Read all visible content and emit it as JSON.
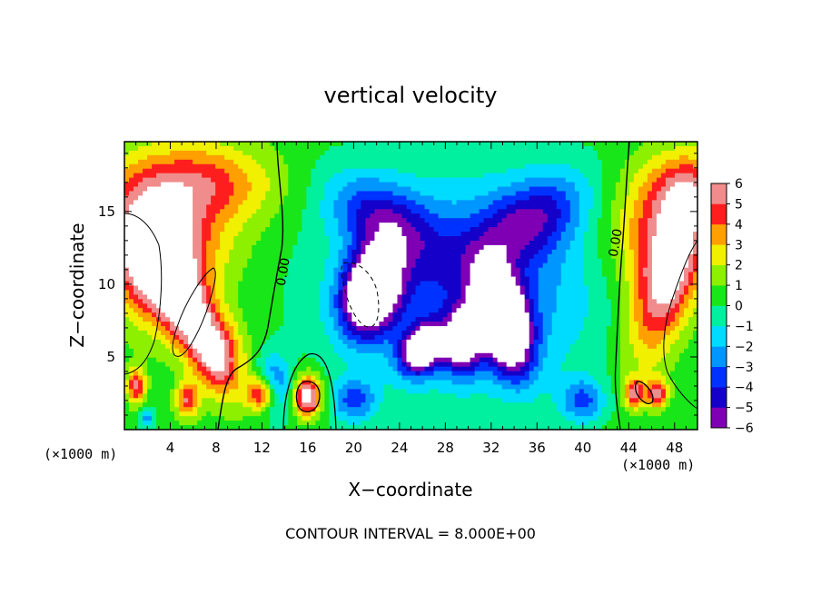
{
  "chart_data": {
    "type": "heatmap",
    "title": "vertical velocity",
    "xlabel": "X−coordinate",
    "ylabel": "Z−coordinate",
    "x_unit_left": "(×1000 m)",
    "x_unit_right": "(×1000 m)",
    "footer": "CONTOUR INTERVAL = 8.000E+00",
    "xlim": [
      0,
      50
    ],
    "ylim": [
      0,
      19.8
    ],
    "x_ticks": [
      4,
      8,
      12,
      16,
      20,
      24,
      28,
      32,
      36,
      40,
      44,
      48
    ],
    "x_tick_labels": [
      "4",
      "8",
      "12",
      "16",
      "20",
      "24",
      "28",
      "32",
      "36",
      "40",
      "44",
      "48"
    ],
    "y_ticks": [
      5,
      10,
      15
    ],
    "y_tick_labels": [
      "5",
      "10",
      "15"
    ],
    "contour_labels": [
      {
        "text": "0.00",
        "x": 14.2,
        "y": 10.8
      },
      {
        "text": "0.00",
        "x": 43.2,
        "y": 12.8
      }
    ],
    "colorbar": {
      "min": -6,
      "max": 6,
      "tick_values": [
        6,
        5,
        4,
        3,
        2,
        1,
        0,
        -1,
        -2,
        -3,
        -4,
        -5,
        -6
      ],
      "tick_labels": [
        "6",
        "5",
        "4",
        "3",
        "2",
        "1",
        "0",
        "−1",
        "−2",
        "−3",
        "−4",
        "−5",
        "−6"
      ]
    },
    "features": [
      {
        "x": 2.5,
        "z": 12.0,
        "sx": 3.5,
        "sz": 4.5,
        "amp": 6,
        "theta": 0.5
      },
      {
        "x": 6.0,
        "z": 7.5,
        "sx": 2.0,
        "sz": 5.0,
        "amp": 6,
        "theta": 0.6
      },
      {
        "x": 4.5,
        "z": 14.0,
        "sx": 6.0,
        "sz": 5.0,
        "amp": 3.5,
        "theta": 0.5
      },
      {
        "x": 7.0,
        "z": 17.0,
        "sx": 7.0,
        "sz": 2.5,
        "amp": 2.5,
        "theta": 0.0
      },
      {
        "x": 1.0,
        "z": 3.0,
        "sx": 0.8,
        "sz": 1.2,
        "amp": 5,
        "theta": 0.0
      },
      {
        "x": 5.5,
        "z": 2.0,
        "sx": 1.0,
        "sz": 1.2,
        "amp": 4.5,
        "theta": 0.0
      },
      {
        "x": 8.5,
        "z": 5.0,
        "sx": 2.0,
        "sz": 2.5,
        "amp": 3,
        "theta": 0.0
      },
      {
        "x": 12.0,
        "z": 2.5,
        "sx": 1.3,
        "sz": 1.2,
        "amp": 6,
        "theta": 0.0
      },
      {
        "x": 16.0,
        "z": 2.3,
        "sx": 1.2,
        "sz": 1.4,
        "amp": 7,
        "theta": 0.0
      },
      {
        "x": 47.5,
        "z": 10.5,
        "sx": 2.5,
        "sz": 6.0,
        "amp": 6,
        "theta": -0.4
      },
      {
        "x": 46.0,
        "z": 14.0,
        "sx": 4.0,
        "sz": 4.5,
        "amp": 3.5,
        "theta": -0.5
      },
      {
        "x": 49.0,
        "z": 16.5,
        "sx": 3.0,
        "sz": 2.5,
        "amp": 3,
        "theta": 0.0
      },
      {
        "x": 44.5,
        "z": 2.5,
        "sx": 0.9,
        "sz": 1.0,
        "amp": 5,
        "theta": 0.0
      },
      {
        "x": 46.5,
        "z": 2.5,
        "sx": 0.9,
        "sz": 1.0,
        "amp": 5,
        "theta": 0.0
      },
      {
        "x": 21.5,
        "z": 9.5,
        "sx": 2.3,
        "sz": 3.0,
        "amp": -10,
        "theta": -0.5
      },
      {
        "x": 33.0,
        "z": 7.5,
        "sx": 2.0,
        "sz": 3.5,
        "amp": -11,
        "theta": 0.4
      },
      {
        "x": 26.0,
        "z": 5.5,
        "sx": 2.0,
        "sz": 1.5,
        "amp": -8,
        "theta": 0.5
      },
      {
        "x": 29.5,
        "z": 6.0,
        "sx": 1.5,
        "sz": 2.0,
        "amp": -7,
        "theta": 0.0
      },
      {
        "x": 30.0,
        "z": 10.0,
        "sx": 11.0,
        "sz": 7.0,
        "amp": -4,
        "theta": 0.0
      },
      {
        "x": 22.5,
        "z": 14.5,
        "sx": 5.0,
        "sz": 2.5,
        "amp": -4,
        "theta": -0.4
      },
      {
        "x": 35.5,
        "z": 14.5,
        "sx": 5.0,
        "sz": 2.5,
        "amp": -4,
        "theta": 0.4
      },
      {
        "x": 13.0,
        "z": 3.0,
        "sx": 1.5,
        "sz": 2.0,
        "amp": -4,
        "theta": 0.0
      },
      {
        "x": 20.0,
        "z": 2.0,
        "sx": 2.0,
        "sz": 1.5,
        "amp": -3.5,
        "theta": 0.0
      },
      {
        "x": 40.0,
        "z": 2.0,
        "sx": 2.0,
        "sz": 1.5,
        "amp": -3.5,
        "theta": 0.0
      },
      {
        "x": 2.0,
        "z": 0.8,
        "sx": 0.6,
        "sz": 0.7,
        "amp": -3,
        "theta": 0.0
      }
    ]
  }
}
